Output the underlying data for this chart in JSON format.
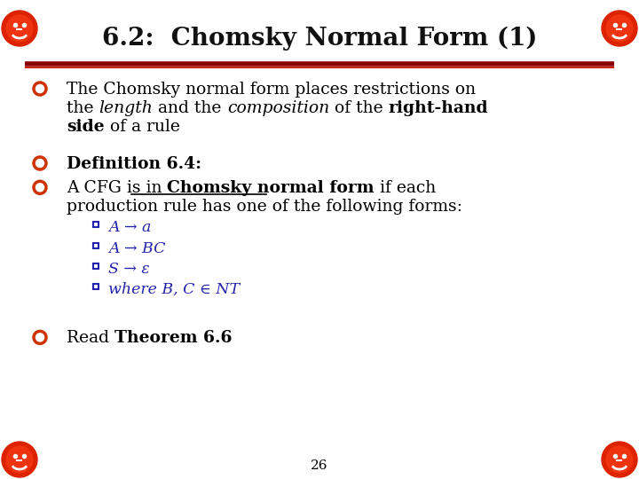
{
  "title": "6.2:  Chomsky Normal Form (1)",
  "title_fontsize": 20,
  "title_color": "#111111",
  "bg_color": "#ffffff",
  "bullet_color": "#cc3300",
  "sub_bullet_color": "#2222aa",
  "page_number": "26",
  "icon_color": "#dd2200",
  "line_color": "#8B0000",
  "line_color2": "#cc2200",
  "font_size_body": 13.5,
  "font_size_sub": 12.5,
  "font_family": "DejaVu Serif",
  "bullet1_line1": "The Chomsky normal form places restrictions on",
  "bullet1_line2_parts": [
    {
      "text": "the ",
      "bold": false,
      "italic": false
    },
    {
      "text": "length",
      "bold": false,
      "italic": true
    },
    {
      "text": " and the ",
      "bold": false,
      "italic": false
    },
    {
      "text": "composition",
      "bold": false,
      "italic": true
    },
    {
      "text": " of the ",
      "bold": false,
      "italic": false
    },
    {
      "text": "right-hand",
      "bold": true,
      "italic": false
    }
  ],
  "bullet1_line3_parts": [
    {
      "text": "side",
      "bold": true,
      "italic": false
    },
    {
      "text": " of a rule",
      "bold": false,
      "italic": false
    }
  ],
  "bullet2_text": "Definition 6.4:",
  "bullet3_line1_parts": [
    {
      "text": "A CFG is in ",
      "bold": false,
      "italic": false
    },
    {
      "text": "Chomsky normal form",
      "bold": true,
      "italic": false
    },
    {
      "text": " if each",
      "bold": false,
      "italic": false
    }
  ],
  "bullet3_line2": "production rule has one of the following forms:",
  "sub_bullets": [
    "A → a",
    "A → BC",
    "S → ε",
    "where B, C ∈ NT"
  ],
  "bullet4_parts": [
    {
      "text": "Read ",
      "bold": false,
      "italic": false
    },
    {
      "text": "Theorem 6.6",
      "bold": true,
      "italic": false
    }
  ]
}
